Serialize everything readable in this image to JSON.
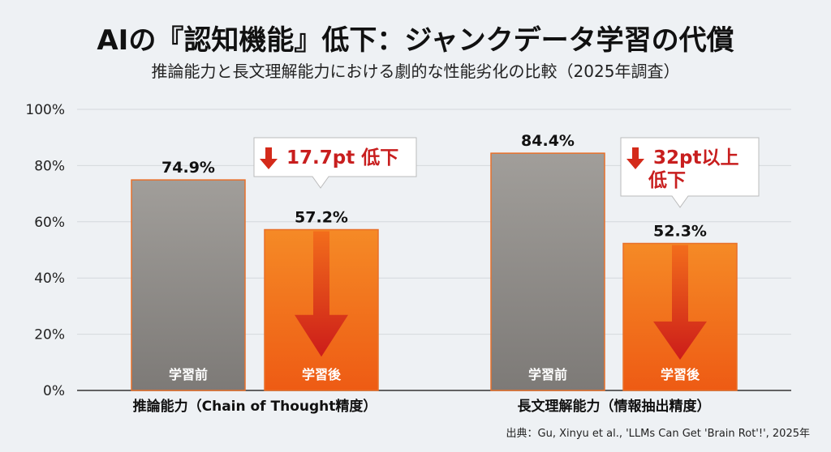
{
  "chart_data": {
    "type": "bar",
    "title": "AIの『認知機能』低下：ジャンクデータ学習の代償",
    "subtitle": "推論能力と長文理解能力における劇的な性能劣化の比較（2025年調査）",
    "categories": [
      "推論能力（Chain of Thought精度）",
      "長文理解能力（情報抽出精度）"
    ],
    "series": [
      {
        "name": "学習前",
        "values": [
          74.9,
          84.4
        ],
        "color": "#8f8d8a"
      },
      {
        "name": "学習後",
        "values": [
          57.2,
          52.3
        ],
        "color": "#f2781e"
      }
    ],
    "value_labels": [
      [
        "74.9%",
        "84.4%"
      ],
      [
        "57.2%",
        "52.3%"
      ]
    ],
    "callouts": [
      "17.7pt 低下",
      "32pt以上\n低下"
    ],
    "ylim": [
      0,
      100
    ],
    "yticks": [
      0,
      20,
      40,
      60,
      80,
      100
    ],
    "ytick_labels": [
      "0%",
      "20%",
      "40%",
      "60%",
      "80%",
      "100%"
    ],
    "grid": true,
    "xlabel": "",
    "ylabel": "",
    "source": "出典：Gu, Xinyu et al., 'LLMs Can Get 'Brain Rot'!', 2025年"
  }
}
